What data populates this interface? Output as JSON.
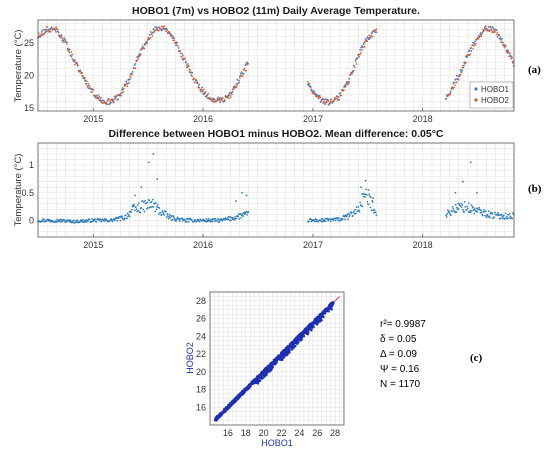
{
  "chart_data": [
    {
      "type": "scatter",
      "panel_label": "(a)",
      "title": "HOBO1 (7m) vs HOBO2 (11m) Daily Average Temperature.",
      "ylabel": "Temperature (°C)",
      "xlabel": "",
      "x_ticks": [
        "2015",
        "2016",
        "2017",
        "2018"
      ],
      "y_ticks": [
        15,
        20,
        25
      ],
      "xlim": [
        "2014-07-01",
        "2018-11-01"
      ],
      "ylim": [
        14.5,
        28.5
      ],
      "grid": true,
      "legend_position": "bottom-right",
      "series": [
        {
          "name": "HOBO1",
          "color": "#4d7ab8",
          "segments": [
            {
              "x": [
                "2014-07-01",
                "2014-08-01",
                "2014-09-01",
                "2014-10-01",
                "2014-11-01",
                "2014-12-01",
                "2015-01-01",
                "2015-02-01",
                "2015-03-01",
                "2015-04-01",
                "2015-05-01",
                "2015-06-01",
                "2015-07-01",
                "2015-08-01",
                "2015-09-01",
                "2015-10-01",
                "2015-11-01",
                "2015-12-01",
                "2016-01-01",
                "2016-02-01",
                "2016-03-01",
                "2016-04-01",
                "2016-05-01",
                "2016-06-01"
              ],
              "y": [
                26.0,
                27.2,
                27.0,
                25.0,
                22.0,
                19.5,
                17.3,
                16.0,
                15.9,
                17.0,
                19.5,
                23.0,
                25.8,
                27.3,
                27.1,
                25.2,
                22.2,
                19.5,
                17.5,
                16.3,
                16.1,
                17.0,
                19.5,
                22.0
              ]
            },
            {
              "x": [
                "2016-12-15",
                "2017-01-01",
                "2017-02-01",
                "2017-03-01",
                "2017-04-01",
                "2017-05-01",
                "2017-06-01",
                "2017-07-01",
                "2017-08-01"
              ],
              "y": [
                18.8,
                17.5,
                16.0,
                15.8,
                16.8,
                19.3,
                23.0,
                25.8,
                26.8
              ]
            },
            {
              "x": [
                "2018-03-20",
                "2018-04-01",
                "2018-05-01",
                "2018-06-01",
                "2018-07-01",
                "2018-08-01",
                "2018-09-01",
                "2018-10-01",
                "2018-11-01"
              ],
              "y": [
                16.5,
                17.5,
                20.0,
                23.2,
                25.8,
                27.3,
                26.8,
                24.5,
                21.8
              ]
            }
          ]
        },
        {
          "name": "HOBO2",
          "color": "#d9542b",
          "segments": [
            {
              "x": [
                "2014-07-01",
                "2014-08-01",
                "2014-09-01",
                "2014-10-01",
                "2014-11-01",
                "2014-12-01",
                "2015-01-01",
                "2015-02-01",
                "2015-03-01",
                "2015-04-01",
                "2015-05-01",
                "2015-06-01",
                "2015-07-01",
                "2015-08-01",
                "2015-09-01",
                "2015-10-01",
                "2015-11-01",
                "2015-12-01",
                "2016-01-01",
                "2016-02-01",
                "2016-03-01",
                "2016-04-01",
                "2016-05-01",
                "2016-06-01"
              ],
              "y": [
                26.0,
                27.1,
                27.0,
                25.0,
                22.0,
                19.5,
                17.3,
                16.0,
                15.9,
                16.9,
                19.3,
                22.7,
                25.5,
                27.2,
                27.1,
                25.2,
                22.2,
                19.5,
                17.5,
                16.3,
                16.1,
                16.9,
                19.3,
                21.7
              ]
            },
            {
              "x": [
                "2016-12-15",
                "2017-01-01",
                "2017-02-01",
                "2017-03-01",
                "2017-04-01",
                "2017-05-01",
                "2017-06-01",
                "2017-07-01",
                "2017-08-01"
              ],
              "y": [
                18.8,
                17.5,
                16.0,
                15.8,
                16.7,
                19.1,
                22.7,
                25.5,
                26.7
              ]
            },
            {
              "x": [
                "2018-03-20",
                "2018-04-01",
                "2018-05-01",
                "2018-06-01",
                "2018-07-01",
                "2018-08-01",
                "2018-09-01",
                "2018-10-01",
                "2018-11-01"
              ],
              "y": [
                16.4,
                17.3,
                19.7,
                23.0,
                25.6,
                27.2,
                26.8,
                24.5,
                21.8
              ]
            }
          ]
        }
      ]
    },
    {
      "type": "scatter",
      "panel_label": "(b)",
      "title": "Difference between HOBO1 minus HOBO2. Mean difference: 0.05°C",
      "ylabel": "Temperature (°C)",
      "xlabel": "",
      "x_ticks": [
        "2015",
        "2016",
        "2017",
        "2018"
      ],
      "y_ticks": [
        0,
        0.5,
        1
      ],
      "xlim": [
        "2014-07-01",
        "2018-11-01"
      ],
      "ylim": [
        -0.3,
        1.4
      ],
      "grid": true,
      "series": [
        {
          "color": "#2a7ab8",
          "segments": [
            {
              "x": [
                "2014-07-01",
                "2014-09-01",
                "2014-11-01",
                "2015-01-01",
                "2015-03-01",
                "2015-04-15",
                "2015-05-15",
                "2015-06-15",
                "2015-07-15",
                "2015-08-15",
                "2015-09-15",
                "2015-11-01",
                "2016-01-01",
                "2016-03-01",
                "2016-04-15",
                "2016-05-15",
                "2016-06-01"
              ],
              "y": [
                0.0,
                0.0,
                -0.02,
                0.0,
                0.0,
                0.05,
                0.2,
                0.25,
                0.3,
                0.15,
                0.05,
                0.0,
                0.0,
                0.0,
                0.05,
                0.1,
                0.1
              ]
            },
            {
              "x": [
                "2016-12-15",
                "2017-02-01",
                "2017-04-01",
                "2017-05-01",
                "2017-06-01",
                "2017-06-20",
                "2017-07-15",
                "2017-08-01"
              ],
              "y": [
                0.0,
                0.0,
                0.02,
                0.08,
                0.2,
                0.45,
                0.3,
                0.15
              ]
            },
            {
              "x": [
                "2018-03-20",
                "2018-04-15",
                "2018-05-15",
                "2018-06-15",
                "2018-07-15",
                "2018-08-15",
                "2018-09-15",
                "2018-11-01"
              ],
              "y": [
                0.1,
                0.2,
                0.25,
                0.2,
                0.15,
                0.1,
                0.08,
                0.08
              ]
            }
          ],
          "outliers": {
            "x": [
              "2015-05-20",
              "2015-06-10",
              "2015-07-05",
              "2015-07-20",
              "2015-08-02",
              "2016-04-20",
              "2016-05-10",
              "2016-05-25",
              "2017-06-10",
              "2017-06-25",
              "2017-07-05",
              "2017-07-20",
              "2018-04-20",
              "2018-05-15",
              "2018-06-10",
              "2018-07-01"
            ],
            "y": [
              0.45,
              0.6,
              1.05,
              1.2,
              0.75,
              0.35,
              0.5,
              0.45,
              0.6,
              0.72,
              0.55,
              0.4,
              0.5,
              0.7,
              1.05,
              0.5
            ]
          }
        }
      ]
    },
    {
      "type": "scatter",
      "panel_label": "(c)",
      "title": "",
      "xlabel": "HOBO1",
      "ylabel": "HOBO2",
      "x_ticks": [
        16,
        18,
        20,
        22,
        24,
        26,
        28
      ],
      "y_ticks": [
        16,
        18,
        20,
        22,
        24,
        26,
        28
      ],
      "xlim": [
        14,
        29
      ],
      "ylim": [
        14,
        29
      ],
      "grid": true,
      "series": [
        {
          "color": "#1f2fb0",
          "x": [
            14.6,
            15.0,
            15.5,
            16.0,
            16.5,
            17.0,
            17.5,
            18.0,
            18.5,
            19.0,
            19.5,
            20.0,
            20.5,
            21.0,
            21.5,
            22.0,
            22.5,
            23.0,
            23.5,
            24.0,
            24.5,
            25.0,
            25.5,
            26.0,
            26.5,
            27.0,
            27.5,
            27.8
          ],
          "y": [
            14.6,
            15.0,
            15.5,
            16.0,
            16.5,
            17.0,
            17.5,
            18.0,
            18.5,
            19.0,
            19.5,
            20.0,
            20.5,
            21.0,
            21.5,
            22.0,
            22.5,
            23.0,
            23.5,
            24.0,
            24.5,
            25.0,
            25.5,
            26.0,
            26.5,
            27.0,
            27.5,
            27.8
          ]
        }
      ],
      "stats": [
        "r²= 0.9987",
        "δ = 0.05",
        "Δ = 0.09",
        "Ψ = 0.16",
        "N = 1170"
      ]
    }
  ]
}
